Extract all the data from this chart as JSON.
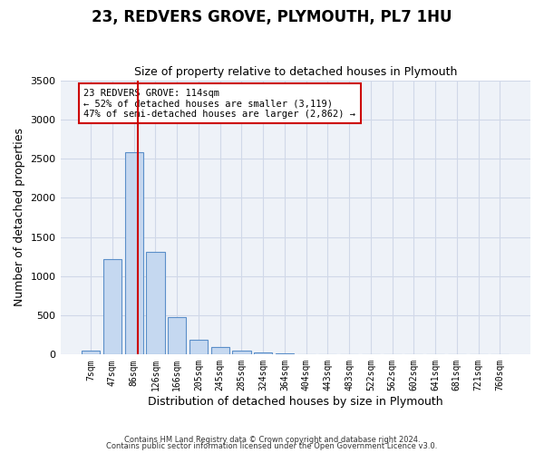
{
  "title": "23, REDVERS GROVE, PLYMOUTH, PL7 1HU",
  "subtitle": "Size of property relative to detached houses in Plymouth",
  "xlabel": "Distribution of detached houses by size in Plymouth",
  "ylabel": "Number of detached properties",
  "bar_color": "#c5d8f0",
  "bar_edge_color": "#5b8fc9",
  "grid_color": "#d0d8e8",
  "background_color": "#eef2f8",
  "annotation_line_color": "#cc0000",
  "annotation_box_color": "#cc0000",
  "annotation_text": "23 REDVERS GROVE: 114sqm\n← 52% of detached houses are smaller (3,119)\n47% of semi-detached houses are larger (2,862) →",
  "property_size": 114,
  "categories": [
    "7sqm",
    "47sqm",
    "86sqm",
    "126sqm",
    "166sqm",
    "205sqm",
    "245sqm",
    "285sqm",
    "324sqm",
    "364sqm",
    "404sqm",
    "443sqm",
    "483sqm",
    "522sqm",
    "562sqm",
    "602sqm",
    "641sqm",
    "681sqm",
    "721sqm",
    "760sqm"
  ],
  "values": [
    50,
    1220,
    2580,
    1310,
    480,
    185,
    100,
    55,
    30,
    20,
    5,
    3,
    2,
    0,
    0,
    0,
    0,
    0,
    0,
    0
  ],
  "ylim": [
    0,
    3500
  ],
  "yticks": [
    0,
    500,
    1000,
    1500,
    2000,
    2500,
    3000,
    3500
  ],
  "property_line_x": 2.2,
  "footer1": "Contains HM Land Registry data © Crown copyright and database right 2024.",
  "footer2": "Contains public sector information licensed under the Open Government Licence v3.0."
}
